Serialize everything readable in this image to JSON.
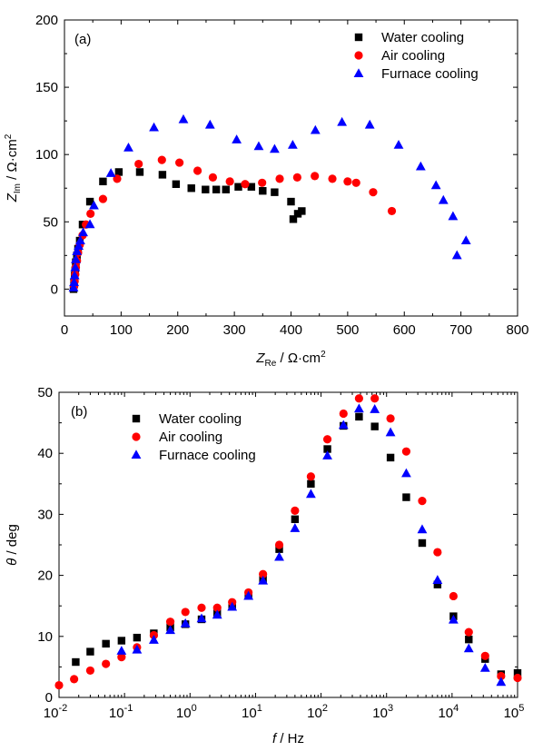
{
  "figure": {
    "background": "#ffffff",
    "axis_color": "#000000"
  },
  "series_styles": [
    {
      "key": "water",
      "marker": "square",
      "color": "#000000"
    },
    {
      "key": "air",
      "marker": "circle",
      "color": "#ff0000"
    },
    {
      "key": "furnace",
      "marker": "triangle-up",
      "color": "#0000ff"
    }
  ],
  "chart_data": [
    {
      "type": "scatter",
      "panel_label": "(a)",
      "xlabel": {
        "main": "Z",
        "sub": "Re",
        "unit": " / Ω·cm",
        "sup": "2"
      },
      "ylabel": {
        "main": "Z",
        "sub": "Im",
        "unit": " / Ω·cm",
        "sup": "2"
      },
      "xlim": [
        0,
        800
      ],
      "ylim": [
        -20,
        200
      ],
      "xticks": [
        0,
        100,
        200,
        300,
        400,
        500,
        600,
        700,
        800
      ],
      "yticks": [
        0,
        50,
        100,
        150,
        200
      ],
      "x_scale": "linear",
      "grid": false,
      "legend_position": "top-right",
      "series": [
        {
          "name": "Water cooling",
          "x": [
            16,
            17,
            18,
            19,
            20,
            22,
            24,
            27,
            32,
            45,
            68,
            96,
            133,
            173,
            197,
            224,
            249,
            268,
            285,
            307,
            330,
            350,
            371,
            400,
            404,
            412,
            419
          ],
          "y": [
            0,
            5,
            10,
            14,
            20,
            25,
            30,
            36,
            48,
            65,
            80,
            87,
            87,
            85,
            78,
            75,
            74,
            74,
            74,
            76,
            76,
            73,
            72,
            65,
            52,
            56,
            58
          ]
        },
        {
          "name": "Air cooling",
          "x": [
            17,
            18,
            19,
            20,
            22,
            24,
            27,
            32,
            38,
            46,
            68,
            93,
            131,
            172,
            203,
            235,
            262,
            292,
            319,
            349,
            380,
            411,
            442,
            473,
            500,
            515,
            545,
            578
          ],
          "y": [
            2,
            6,
            11,
            16,
            21,
            27,
            33,
            40,
            48,
            56,
            67,
            82,
            93,
            96,
            94,
            88,
            83,
            80,
            78,
            79,
            82,
            83,
            84,
            82,
            80,
            79,
            72,
            58
          ]
        },
        {
          "name": "Furnace cooling",
          "x": [
            16,
            17,
            18,
            19,
            20,
            22,
            25,
            28,
            33,
            45,
            52,
            82,
            113,
            158,
            210,
            257,
            304,
            343,
            371,
            403,
            443,
            490,
            539,
            590,
            629,
            656,
            669,
            686,
            693,
            709
          ],
          "y": [
            1,
            5,
            10,
            16,
            22,
            28,
            32,
            36,
            42,
            48,
            62,
            86,
            105,
            120,
            126,
            122,
            111,
            106,
            104,
            107,
            118,
            124,
            122,
            107,
            91,
            77,
            66,
            54,
            25,
            36
          ]
        }
      ]
    },
    {
      "type": "scatter",
      "panel_label": "(b)",
      "xlabel": {
        "main": "f",
        "unit": " / Hz"
      },
      "ylabel": {
        "main": "θ",
        "unit": " / deg"
      },
      "x_scale": "log",
      "xlim": [
        0.01,
        100000
      ],
      "ylim": [
        0,
        50
      ],
      "xticks_exp": [
        -2,
        -1,
        0,
        1,
        2,
        3,
        4,
        5
      ],
      "tick_base": "10",
      "yticks": [
        0,
        10,
        20,
        30,
        40,
        50
      ],
      "grid": false,
      "legend_position": "top-left",
      "series": [
        {
          "name": "Water cooling",
          "x": [
            0.018,
            0.03,
            0.052,
            0.09,
            0.155,
            0.28,
            0.5,
            0.85,
            1.5,
            2.6,
            4.4,
            7.8,
            13,
            23,
            40,
            70,
            125,
            220,
            380,
            660,
            1150,
            2000,
            3500,
            6000,
            10500,
            18000,
            32000,
            56000,
            100000
          ],
          "y": [
            5.8,
            7.5,
            8.8,
            9.3,
            9.8,
            10.5,
            11.5,
            12,
            12.8,
            13.8,
            15,
            16.8,
            19.3,
            24.3,
            29.2,
            35,
            40.7,
            44.5,
            46,
            44.4,
            39.3,
            32.8,
            25.3,
            18.5,
            13.3,
            9.5,
            6.3,
            3.8,
            4
          ]
        },
        {
          "name": "Air cooling",
          "x": [
            0.01,
            0.017,
            0.03,
            0.052,
            0.09,
            0.155,
            0.28,
            0.5,
            0.85,
            1.5,
            2.6,
            4.4,
            7.8,
            13,
            23,
            40,
            70,
            125,
            220,
            380,
            660,
            1150,
            2000,
            3500,
            6000,
            10500,
            18000,
            32000,
            56000,
            100000
          ],
          "y": [
            2,
            3,
            4.4,
            5.5,
            6.6,
            8.2,
            10.2,
            12.4,
            14,
            14.7,
            14.7,
            15.6,
            17.2,
            20.2,
            25,
            30.6,
            36.2,
            42.3,
            46.5,
            49,
            49,
            45.7,
            40.3,
            32.2,
            23.8,
            16.6,
            10.7,
            6.8,
            3.5,
            3.2
          ]
        },
        {
          "name": "Furnace cooling",
          "x": [
            0.09,
            0.155,
            0.28,
            0.5,
            0.85,
            1.5,
            2.6,
            4.4,
            7.8,
            13,
            23,
            40,
            70,
            125,
            220,
            380,
            660,
            1150,
            2000,
            3500,
            6000,
            10500,
            18000,
            32000,
            56000
          ],
          "y": [
            7.6,
            7.8,
            9.4,
            11,
            12.1,
            12.9,
            13.5,
            14.8,
            16.6,
            19.1,
            23,
            27.7,
            33.3,
            39.6,
            44.6,
            47.3,
            47.2,
            43.4,
            36.7,
            27.5,
            19.2,
            12.7,
            8,
            4.8,
            2.5
          ]
        }
      ]
    }
  ]
}
